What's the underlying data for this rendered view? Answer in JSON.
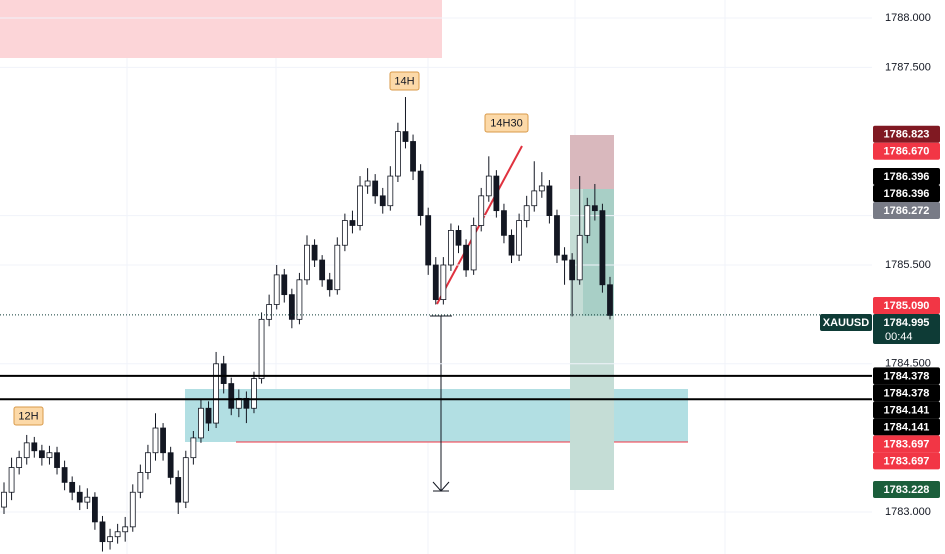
{
  "chart_data": {
    "type": "candlestick",
    "symbol": "XAUUSD",
    "annotations": [
      "14H",
      "14H30",
      "12H"
    ],
    "ylim": [
      1782.575,
      1788.182
    ],
    "yticks": [
      {
        "value": 1788,
        "label": "1788.000"
      },
      {
        "value": 1787.5,
        "label": "1787.500"
      },
      {
        "value": 1786,
        "label": "1786.000"
      },
      {
        "value": 1785.5,
        "label": "1785.500"
      },
      {
        "value": 1784.5,
        "label": "1784.500"
      },
      {
        "value": 1783,
        "label": "1783.000"
      }
    ],
    "grid": true,
    "up_color": "#ffffff",
    "down_color": "#131722",
    "wick_color": "#131722",
    "open": [
      1783.05,
      1783.2,
      1783.45,
      1783.55,
      1783.7,
      1783.62,
      1783.55,
      1783.6,
      1783.45,
      1783.3,
      1783.2,
      1783.1,
      1783.15,
      1782.9,
      1782.7,
      1782.75,
      1782.8,
      1782.85,
      1783.2,
      1783.4,
      1783.6,
      1783.85,
      1783.6,
      1783.35,
      1783.1,
      1783.55,
      1783.75,
      1784.05,
      1783.9,
      1784.5,
      1784.3,
      1784.05,
      1784.15,
      1784.05,
      1784.35,
      1784.95,
      1785.1,
      1785.4,
      1785.2,
      1784.95,
      1785.35,
      1785.7,
      1785.55,
      1785.35,
      1785.25,
      1785.7,
      1785.95,
      1785.9,
      1786.3,
      1786.35,
      1786.2,
      1786.1,
      1786.4,
      1786.85,
      1786.75,
      1786.45,
      1786.0,
      1785.5,
      1785.15,
      1785.5,
      1785.85,
      1785.7,
      1785.45,
      1785.9,
      1786.2,
      1786.4,
      1786.05,
      1785.8,
      1785.6,
      1785.95,
      1786.1,
      1786.25,
      1786.3,
      1786.0,
      1785.6,
      1785.55,
      1785.35,
      1785.8,
      1786.1,
      1786.05,
      1785.3
    ],
    "high": [
      1783.3,
      1783.55,
      1783.62,
      1783.78,
      1783.76,
      1783.68,
      1783.67,
      1783.66,
      1783.52,
      1783.36,
      1783.27,
      1783.24,
      1783.2,
      1782.96,
      1782.83,
      1782.88,
      1782.95,
      1783.28,
      1783.48,
      1783.68,
      1784.0,
      1783.9,
      1783.66,
      1783.42,
      1783.62,
      1783.82,
      1784.14,
      1784.12,
      1784.62,
      1784.58,
      1784.36,
      1784.24,
      1784.22,
      1784.42,
      1785.02,
      1785.2,
      1785.5,
      1785.46,
      1785.26,
      1785.42,
      1785.8,
      1785.76,
      1785.6,
      1785.42,
      1785.78,
      1786.02,
      1786.05,
      1786.4,
      1786.48,
      1786.42,
      1786.28,
      1786.5,
      1786.94,
      1787.2,
      1786.82,
      1786.52,
      1786.08,
      1785.58,
      1785.58,
      1785.92,
      1785.9,
      1785.76,
      1785.98,
      1786.28,
      1786.6,
      1786.46,
      1786.12,
      1785.86,
      1786.02,
      1786.2,
      1786.55,
      1786.44,
      1786.36,
      1786.06,
      1785.68,
      1785.62,
      1786.4,
      1786.18,
      1786.32,
      1786.12,
      1785.38
    ],
    "low": [
      1782.98,
      1783.12,
      1783.38,
      1783.48,
      1783.55,
      1783.47,
      1783.48,
      1783.38,
      1783.22,
      1783.12,
      1783.02,
      1783.03,
      1782.82,
      1782.6,
      1782.62,
      1782.68,
      1782.7,
      1782.8,
      1783.14,
      1783.33,
      1783.52,
      1783.52,
      1783.28,
      1782.98,
      1783.04,
      1783.48,
      1783.7,
      1783.82,
      1783.85,
      1784.2,
      1783.98,
      1783.96,
      1783.9,
      1784.0,
      1784.3,
      1784.88,
      1785.05,
      1785.12,
      1784.86,
      1784.9,
      1785.3,
      1785.48,
      1785.28,
      1785.18,
      1785.2,
      1785.64,
      1785.82,
      1785.85,
      1786.22,
      1786.12,
      1786.02,
      1786.05,
      1786.34,
      1786.68,
      1786.36,
      1785.9,
      1785.4,
      1785.1,
      1785.1,
      1785.44,
      1785.62,
      1785.38,
      1785.4,
      1785.84,
      1786.14,
      1785.98,
      1785.72,
      1785.52,
      1785.54,
      1785.88,
      1786.04,
      1786.18,
      1785.92,
      1785.52,
      1785.3,
      1784.98,
      1785.3,
      1785.72,
      1785.95,
      1785.22,
      1784.95
    ],
    "close": [
      1783.2,
      1783.45,
      1783.55,
      1783.7,
      1783.62,
      1783.55,
      1783.6,
      1783.45,
      1783.3,
      1783.2,
      1783.1,
      1783.15,
      1782.9,
      1782.7,
      1782.75,
      1782.8,
      1782.85,
      1783.2,
      1783.4,
      1783.6,
      1783.85,
      1783.6,
      1783.35,
      1783.1,
      1783.55,
      1783.75,
      1784.05,
      1783.9,
      1784.5,
      1784.3,
      1784.05,
      1784.15,
      1784.05,
      1784.35,
      1784.95,
      1785.1,
      1785.4,
      1785.2,
      1784.95,
      1785.35,
      1785.7,
      1785.55,
      1785.35,
      1785.25,
      1785.7,
      1785.95,
      1785.9,
      1786.3,
      1786.35,
      1786.2,
      1786.1,
      1786.4,
      1786.85,
      1786.75,
      1786.45,
      1786.0,
      1785.5,
      1785.15,
      1785.5,
      1785.85,
      1785.7,
      1785.45,
      1785.9,
      1786.2,
      1786.4,
      1786.05,
      1785.8,
      1785.6,
      1785.95,
      1786.1,
      1786.25,
      1786.3,
      1786.0,
      1785.6,
      1785.55,
      1785.35,
      1785.8,
      1786.1,
      1786.05,
      1785.3,
      1784.99
    ],
    "price_labels": [
      {
        "value": 1786.823,
        "color": "#801922"
      },
      {
        "value": 1786.67,
        "label": "1786.670",
        "color": "#f23645"
      },
      {
        "value": 1786.396,
        "color": "#000000"
      },
      {
        "value": 1786.396,
        "color": "#000000"
      },
      {
        "value": 1786.272,
        "color": "#787b86"
      },
      {
        "value": 1785.09,
        "label": "1785.090",
        "color": "#f23645"
      },
      {
        "value": 1784.995,
        "color": "#0e3b36",
        "countdown": "00:44"
      },
      {
        "value": 1784.378,
        "color": "#000000"
      },
      {
        "value": 1784.378,
        "color": "#000000"
      },
      {
        "value": 1784.141,
        "color": "#000000"
      },
      {
        "value": 1784.141,
        "color": "#000000"
      },
      {
        "value": 1783.697,
        "color": "#f23645"
      },
      {
        "value": 1783.697,
        "color": "#f23645"
      },
      {
        "value": 1783.228,
        "color": "#1b5e3b"
      }
    ]
  }
}
